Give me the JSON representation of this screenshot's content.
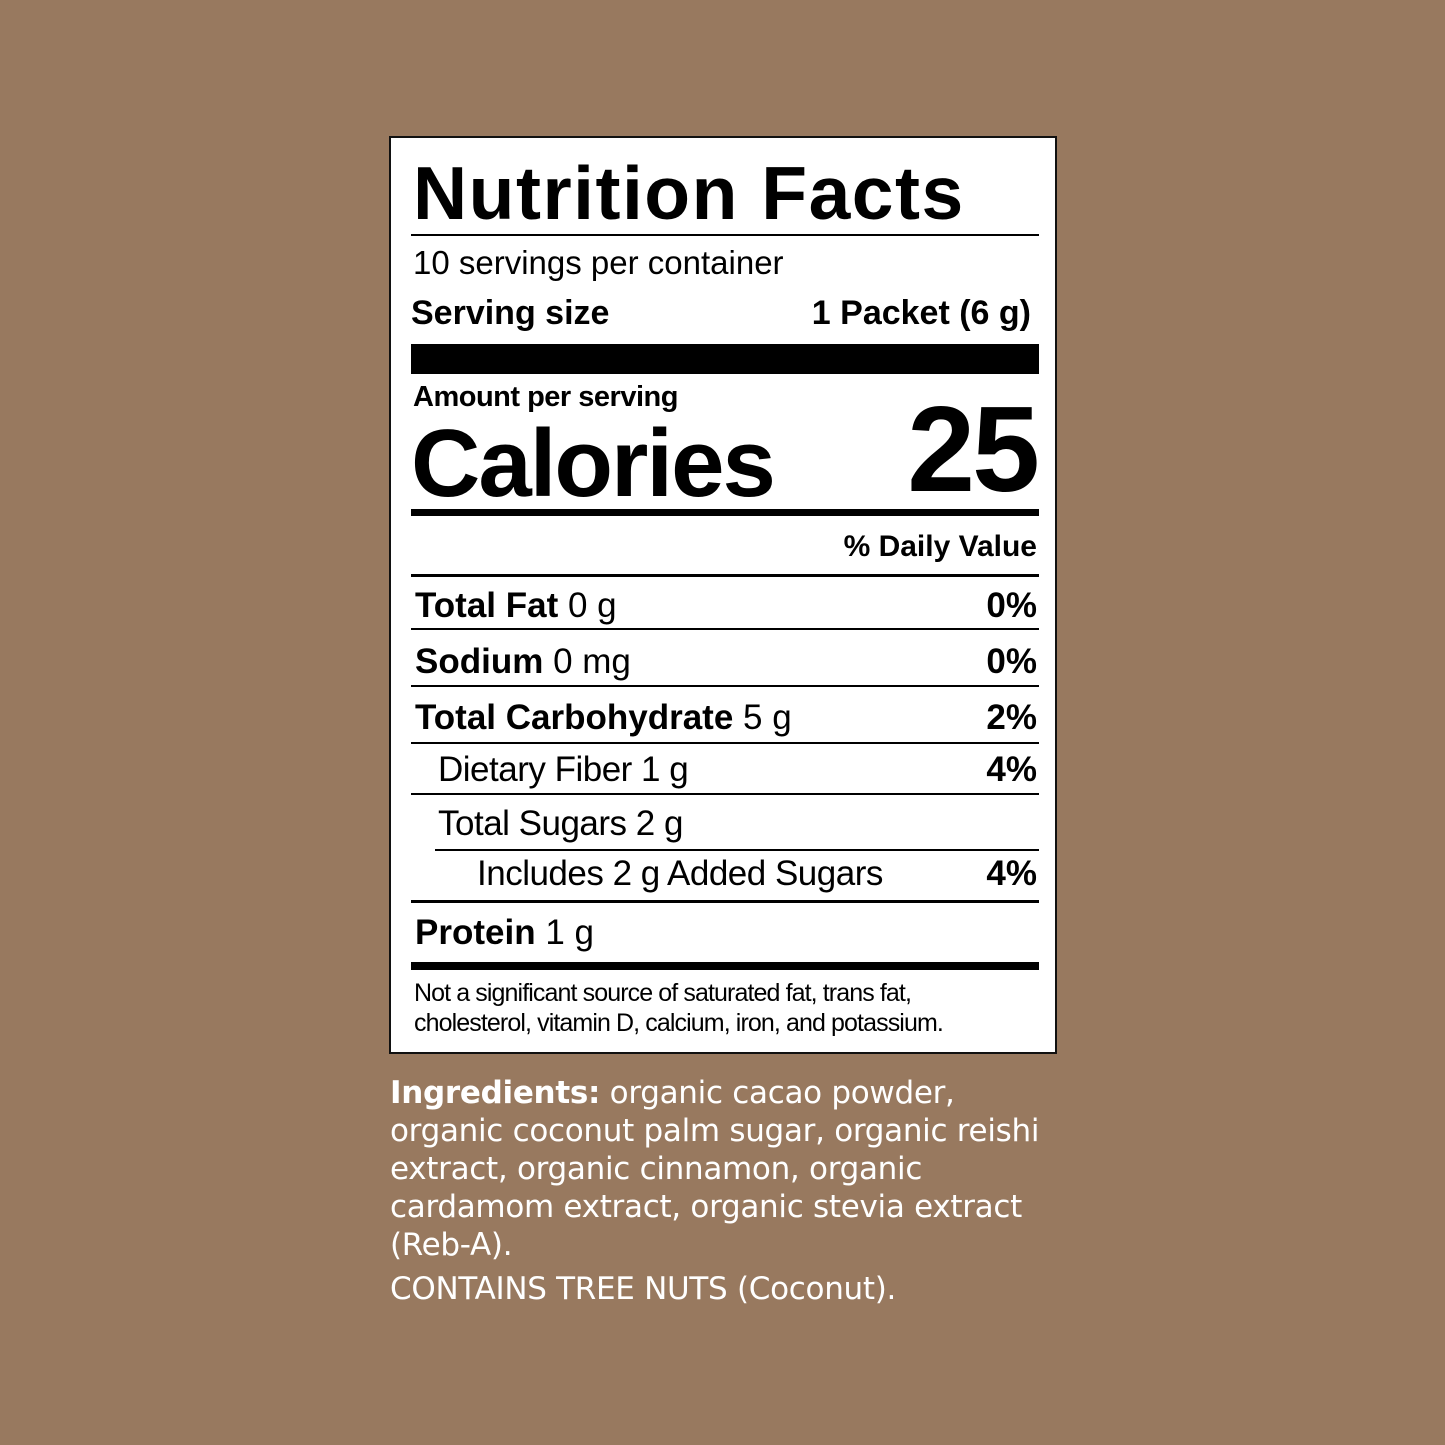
{
  "label": {
    "title": "Nutrition Facts",
    "servings_per_container": "10 servings per container",
    "serving_size_label": "Serving size",
    "serving_size_value": "1 Packet (6 g)",
    "amount_per_serving": "Amount per serving",
    "calories_label": "Calories",
    "calories_value": "25",
    "daily_value_header": "% Daily Value",
    "nutrients": [
      {
        "name": "Total Fat",
        "amount": "0 g",
        "dv": "0%"
      },
      {
        "name": "Sodium",
        "amount": "0 mg",
        "dv": "0%"
      },
      {
        "name": "Total Carbohydrate",
        "amount": "5 g",
        "dv": "2%"
      },
      {
        "name": "Dietary Fiber 1 g",
        "dv": "4%"
      },
      {
        "name": "Total Sugars 2 g"
      },
      {
        "name": "Includes 2 g Added Sugars",
        "dv": "4%"
      },
      {
        "name": "Protein",
        "amount": "1 g"
      }
    ],
    "footnote_line1": "Not a significant source of saturated fat, trans fat,",
    "footnote_line2": "cholesterol, vitamin D, calcium, iron, and potassium."
  },
  "ingredients": {
    "heading": "Ingredients:",
    "text": "organic cacao powder, organic coconut palm sugar, organic reishi extract, organic cinnamon, organic cardamom extract, organic stevia extract (Reb-A).",
    "allergen": "CONTAINS TREE NUTS (Coconut)."
  },
  "colors": {
    "background": "#98795f",
    "label_bg": "#ffffff",
    "ink": "#000000",
    "ingredients_text": "#ffffff"
  }
}
